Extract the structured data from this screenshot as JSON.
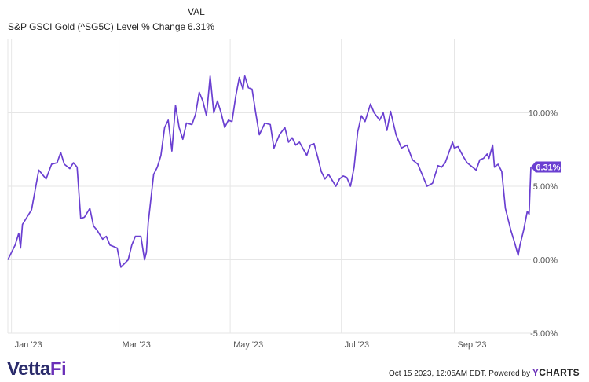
{
  "legend": {
    "column_header": "VAL",
    "series_name": "S&P GSCI Gold (^SG5C) Level % Change",
    "series_value": "6.31%"
  },
  "footer": {
    "brand_main": "Vetta",
    "brand_accent": "Fi",
    "timestamp": "Oct 15 2023, 12:05AM EDT.  Powered by",
    "provider_y": "Y",
    "provider_rest": "CHARTS"
  },
  "colors": {
    "series": "#6a3fd1",
    "grid": "#e6e6e6"
  },
  "chart_data": {
    "type": "line",
    "title": "",
    "xlabel": "",
    "ylabel": "",
    "ylim": [
      -5,
      15
    ],
    "yticks": [
      -5,
      0,
      5,
      10
    ],
    "ytick_labels": [
      "-5.00%",
      "0.00%",
      "5.00%",
      "10.00%"
    ],
    "x_start": "2022-12-30",
    "x_end": "2023-10-13",
    "xticks": [
      "2023-01-01",
      "2023-03-01",
      "2023-05-01",
      "2023-07-01",
      "2023-09-01"
    ],
    "xtick_labels": [
      "Jan '23",
      "Mar '23",
      "May '23",
      "Jul '23",
      "Sep '23"
    ],
    "end_label": "6.31%",
    "series": [
      {
        "name": "S&P GSCI Gold (^SG5C) Level % Change",
        "points": [
          [
            "2022-12-30",
            0.0
          ],
          [
            "2023-01-03",
            1.0
          ],
          [
            "2023-01-05",
            1.8
          ],
          [
            "2023-01-06",
            0.8
          ],
          [
            "2023-01-07",
            2.4
          ],
          [
            "2023-01-10",
            3.0
          ],
          [
            "2023-01-12",
            3.4
          ],
          [
            "2023-01-16",
            6.1
          ],
          [
            "2023-01-20",
            5.5
          ],
          [
            "2023-01-23",
            6.5
          ],
          [
            "2023-01-26",
            6.6
          ],
          [
            "2023-01-28",
            7.3
          ],
          [
            "2023-01-30",
            6.5
          ],
          [
            "2023-02-02",
            6.2
          ],
          [
            "2023-02-04",
            6.6
          ],
          [
            "2023-02-06",
            6.3
          ],
          [
            "2023-02-08",
            2.8
          ],
          [
            "2023-02-10",
            2.9
          ],
          [
            "2023-02-13",
            3.5
          ],
          [
            "2023-02-15",
            2.3
          ],
          [
            "2023-02-17",
            2.0
          ],
          [
            "2023-02-20",
            1.4
          ],
          [
            "2023-02-22",
            1.6
          ],
          [
            "2023-02-24",
            1.0
          ],
          [
            "2023-02-28",
            0.8
          ],
          [
            "2023-03-02",
            -0.5
          ],
          [
            "2023-03-06",
            0.0
          ],
          [
            "2023-03-08",
            1.0
          ],
          [
            "2023-03-10",
            1.6
          ],
          [
            "2023-03-13",
            1.6
          ],
          [
            "2023-03-15",
            0.0
          ],
          [
            "2023-03-16",
            0.5
          ],
          [
            "2023-03-17",
            2.5
          ],
          [
            "2023-03-20",
            5.8
          ],
          [
            "2023-03-22",
            6.3
          ],
          [
            "2023-03-24",
            7.1
          ],
          [
            "2023-03-26",
            9.0
          ],
          [
            "2023-03-28",
            9.5
          ],
          [
            "2023-03-30",
            7.4
          ],
          [
            "2023-04-01",
            10.5
          ],
          [
            "2023-04-03",
            9.0
          ],
          [
            "2023-04-05",
            8.2
          ],
          [
            "2023-04-07",
            9.3
          ],
          [
            "2023-04-10",
            9.2
          ],
          [
            "2023-04-12",
            9.9
          ],
          [
            "2023-04-14",
            11.4
          ],
          [
            "2023-04-16",
            10.8
          ],
          [
            "2023-04-18",
            9.8
          ],
          [
            "2023-04-20",
            12.5
          ],
          [
            "2023-04-22",
            10.0
          ],
          [
            "2023-04-24",
            10.8
          ],
          [
            "2023-04-26",
            10.0
          ],
          [
            "2023-04-28",
            9.0
          ],
          [
            "2023-04-30",
            9.5
          ],
          [
            "2023-05-02",
            9.4
          ],
          [
            "2023-05-04",
            11.1
          ],
          [
            "2023-05-06",
            12.4
          ],
          [
            "2023-05-08",
            11.6
          ],
          [
            "2023-05-09",
            12.5
          ],
          [
            "2023-05-11",
            11.7
          ],
          [
            "2023-05-13",
            11.6
          ],
          [
            "2023-05-15",
            10.0
          ],
          [
            "2023-05-17",
            8.5
          ],
          [
            "2023-05-20",
            9.3
          ],
          [
            "2023-05-23",
            9.2
          ],
          [
            "2023-05-25",
            7.6
          ],
          [
            "2023-05-28",
            8.5
          ],
          [
            "2023-05-31",
            9.0
          ],
          [
            "2023-06-02",
            8.0
          ],
          [
            "2023-06-04",
            8.3
          ],
          [
            "2023-06-06",
            7.8
          ],
          [
            "2023-06-08",
            8.0
          ],
          [
            "2023-06-12",
            7.1
          ],
          [
            "2023-06-14",
            7.8
          ],
          [
            "2023-06-16",
            7.9
          ],
          [
            "2023-06-18",
            7.0
          ],
          [
            "2023-06-20",
            6.0
          ],
          [
            "2023-06-22",
            5.5
          ],
          [
            "2023-06-24",
            5.8
          ],
          [
            "2023-06-28",
            5.0
          ],
          [
            "2023-06-30",
            5.5
          ],
          [
            "2023-07-02",
            5.7
          ],
          [
            "2023-07-04",
            5.6
          ],
          [
            "2023-07-06",
            5.0
          ],
          [
            "2023-07-08",
            6.3
          ],
          [
            "2023-07-10",
            8.7
          ],
          [
            "2023-07-12",
            9.8
          ],
          [
            "2023-07-14",
            9.4
          ],
          [
            "2023-07-17",
            10.6
          ],
          [
            "2023-07-19",
            10.0
          ],
          [
            "2023-07-22",
            9.5
          ],
          [
            "2023-07-24",
            10.0
          ],
          [
            "2023-07-26",
            8.8
          ],
          [
            "2023-07-28",
            10.1
          ],
          [
            "2023-07-31",
            8.5
          ],
          [
            "2023-08-03",
            7.6
          ],
          [
            "2023-08-06",
            7.8
          ],
          [
            "2023-08-09",
            6.8
          ],
          [
            "2023-08-12",
            6.5
          ],
          [
            "2023-08-15",
            5.6
          ],
          [
            "2023-08-17",
            5.0
          ],
          [
            "2023-08-20",
            5.2
          ],
          [
            "2023-08-23",
            6.4
          ],
          [
            "2023-08-25",
            6.3
          ],
          [
            "2023-08-27",
            6.6
          ],
          [
            "2023-08-29",
            7.3
          ],
          [
            "2023-08-31",
            8.0
          ],
          [
            "2023-09-01",
            7.6
          ],
          [
            "2023-09-03",
            7.7
          ],
          [
            "2023-09-06",
            7.0
          ],
          [
            "2023-09-08",
            6.6
          ],
          [
            "2023-09-11",
            6.3
          ],
          [
            "2023-09-13",
            6.1
          ],
          [
            "2023-09-15",
            6.8
          ],
          [
            "2023-09-17",
            6.9
          ],
          [
            "2023-09-19",
            7.2
          ],
          [
            "2023-09-20",
            6.9
          ],
          [
            "2023-09-22",
            7.8
          ],
          [
            "2023-09-23",
            6.3
          ],
          [
            "2023-09-25",
            6.5
          ],
          [
            "2023-09-27",
            6.0
          ],
          [
            "2023-09-29",
            3.5
          ],
          [
            "2023-10-02",
            2.0
          ],
          [
            "2023-10-04",
            1.2
          ],
          [
            "2023-10-06",
            0.3
          ],
          [
            "2023-10-07",
            1.0
          ],
          [
            "2023-10-09",
            2.0
          ],
          [
            "2023-10-11",
            3.3
          ],
          [
            "2023-10-12",
            3.1
          ],
          [
            "2023-10-13",
            6.31
          ]
        ]
      }
    ]
  }
}
